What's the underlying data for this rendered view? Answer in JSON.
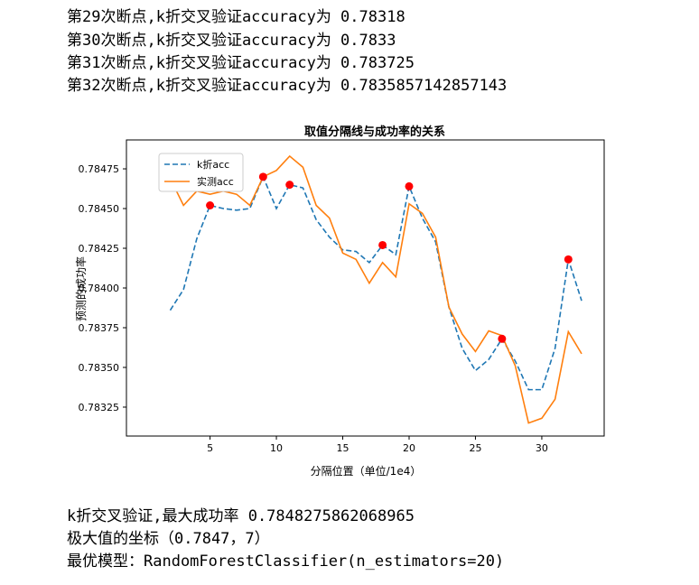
{
  "output_top": [
    "第29次断点,k折交叉验证accuracy为 0.78318",
    "第30次断点,k折交叉验证accuracy为 0.7833",
    "第31次断点,k折交叉验证accuracy为 0.783725",
    "第32次断点,k折交叉验证accuracy为 0.7835857142857143"
  ],
  "chart_data": {
    "type": "line",
    "title": "取值分隔线与成功率的关系",
    "x_label": "分隔位置（单位/1e4）",
    "y_label": "预测的成功率",
    "x": [
      2,
      3,
      4,
      5,
      6,
      7,
      8,
      9,
      10,
      11,
      12,
      13,
      14,
      15,
      16,
      17,
      18,
      19,
      20,
      21,
      22,
      23,
      24,
      25,
      26,
      27,
      28,
      29,
      30,
      31,
      32,
      33
    ],
    "series": [
      {
        "name": "k折acc",
        "color": "#1f77b4",
        "linestyle": "dashed",
        "values": [
          0.78386,
          0.78399,
          0.78431,
          0.78452,
          0.7845,
          0.78449,
          0.7845,
          0.7847,
          0.7845,
          0.78465,
          0.78463,
          0.78443,
          0.78432,
          0.78424,
          0.78423,
          0.78416,
          0.78427,
          0.78421,
          0.78464,
          0.78444,
          0.78429,
          0.78388,
          0.78362,
          0.78348,
          0.78355,
          0.78368,
          0.78354,
          0.78336,
          0.78336,
          0.78362,
          0.78418,
          0.78392
        ]
      },
      {
        "name": "实测acc",
        "color": "#ff7f0e",
        "linestyle": "solid",
        "values": [
          0.78469,
          0.78452,
          0.78461,
          0.78459,
          0.78461,
          0.78459,
          0.78452,
          0.7847,
          0.78474,
          0.78483,
          0.78476,
          0.78452,
          0.78444,
          0.78422,
          0.78418,
          0.78403,
          0.78416,
          0.78407,
          0.78453,
          0.78447,
          0.78432,
          0.78388,
          0.78371,
          0.7836,
          0.78373,
          0.7837,
          0.78351,
          0.78315,
          0.78318,
          0.7833,
          0.783725,
          0.7835857142857143
        ]
      }
    ],
    "markers": {
      "color": "#ff0000",
      "x": [
        5,
        9,
        11,
        18,
        20,
        27,
        32
      ],
      "values": [
        0.78452,
        0.7847,
        0.78465,
        0.78427,
        0.78464,
        0.78368,
        0.78418
      ]
    },
    "xlim": [
      -1.3,
      34.7
    ],
    "ylim": [
      0.783068,
      0.784932
    ],
    "xticks": [
      5,
      10,
      15,
      20,
      25,
      30
    ],
    "yticks": [
      0.78325,
      {
        "value": 0.7835,
        "label": "0.78350"
      },
      0.78375,
      {
        "value": 0.784,
        "label": "0.78400"
      },
      0.78425,
      {
        "value": 0.7845,
        "label": "0.78450"
      },
      0.78475
    ],
    "legend": "upper left",
    "grid": false
  },
  "output_bottom": [
    "k折交叉验证,最大成功率 0.7848275862068965",
    "极大值的坐标（0.7847，7）",
    "最优模型：RandomForestClassifier(n_estimators=20)"
  ]
}
